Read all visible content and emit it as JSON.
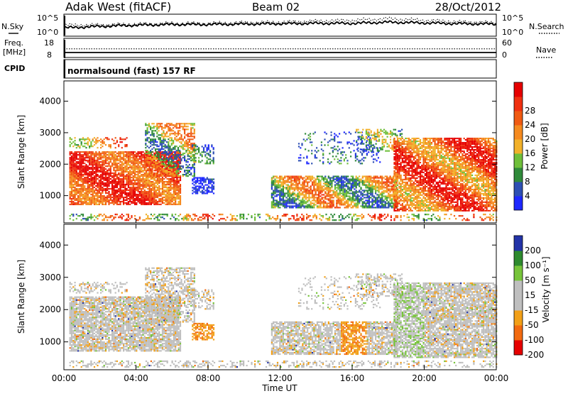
{
  "header": {
    "station": "Adak West (fitACF)",
    "beam": "Beam 02",
    "date": "28/Oct/2012"
  },
  "colors": {
    "power_scale": [
      "#1e28ff",
      "#2d4fb3",
      "#2f8a3a",
      "#6fbf3a",
      "#f2b12a",
      "#f58a1f",
      "#f05a12",
      "#f03010",
      "#e60000"
    ],
    "velocity_scale": [
      "#e60000",
      "#f26a10",
      "#f2a018",
      "#bfbfbf",
      "#bfbfbf",
      "#77c43a",
      "#2e8a2e",
      "#2333a8"
    ]
  },
  "chart_data": [
    {
      "type": "line",
      "panel": "noise",
      "left_label": "N.Sky",
      "right_label": "N.Search",
      "left_ticks": [
        "10^5",
        "10^0"
      ],
      "right_ticks": [
        "10^5",
        "10^0"
      ],
      "series": [
        {
          "name": "N.Sky",
          "style": "solid"
        },
        {
          "name": "N.Search",
          "style": "dotted"
        }
      ],
      "x": [
        "00:00",
        "02:00",
        "04:00",
        "06:00",
        "08:00",
        "10:00",
        "12:00",
        "14:00",
        "16:00",
        "18:00",
        "20:00",
        "22:00",
        "24:00"
      ],
      "sky": [
        1.8,
        2.2,
        2.5,
        2.7,
        2.7,
        2.8,
        2.9,
        3.0,
        3.0,
        3.3,
        3.1,
        2.9,
        2.8
      ],
      "search": [
        2.5,
        2.6,
        2.8,
        3.0,
        3.0,
        3.2,
        3.3,
        3.6,
        3.8,
        4.2,
        3.8,
        3.4,
        3.2
      ]
    },
    {
      "type": "line",
      "panel": "frequency",
      "left_label_1": "Freq.",
      "left_label_2": "[MHz]",
      "right_label": "Nave",
      "left_ticks": [
        "18",
        "8"
      ],
      "right_ticks": [
        "60",
        "0"
      ],
      "series": [
        {
          "name": "Freq.",
          "style": "solid",
          "value": 10.5
        },
        {
          "name": "Nave",
          "style": "dotted",
          "value": 28
        }
      ],
      "ylim_left": [
        8,
        18
      ],
      "ylim_right": [
        0,
        60
      ]
    },
    {
      "type": "table",
      "panel": "cpid",
      "label": "CPID",
      "text": "normalsound (fast) 157 RF"
    },
    {
      "type": "heatmap",
      "panel": "power",
      "ylabel": "Slant Range [km]",
      "ylim": [
        180,
        4600
      ],
      "yticks": [
        "1000",
        "2000",
        "3000",
        "4000"
      ],
      "xlim": [
        0,
        24
      ],
      "colorbar_label": "Power [dB]",
      "colorbar_ticks": [
        "4",
        "8",
        "12",
        "16",
        "20",
        "24",
        "28"
      ]
    },
    {
      "type": "heatmap",
      "panel": "velocity",
      "ylabel": "Slant Range [km]",
      "ylim": [
        180,
        4600
      ],
      "yticks": [
        "1000",
        "2000",
        "3000",
        "4000"
      ],
      "xlim": [
        0,
        24
      ],
      "xticks": [
        "00:00",
        "04:00",
        "08:00",
        "12:00",
        "16:00",
        "20:00",
        "00:00"
      ],
      "xlabel": "Time UT",
      "colorbar_label": "Velocity [m s⁻¹]",
      "colorbar_ticks": [
        "200",
        "100",
        "50",
        "15",
        "-15",
        "-50",
        "-100",
        "-200"
      ]
    }
  ]
}
